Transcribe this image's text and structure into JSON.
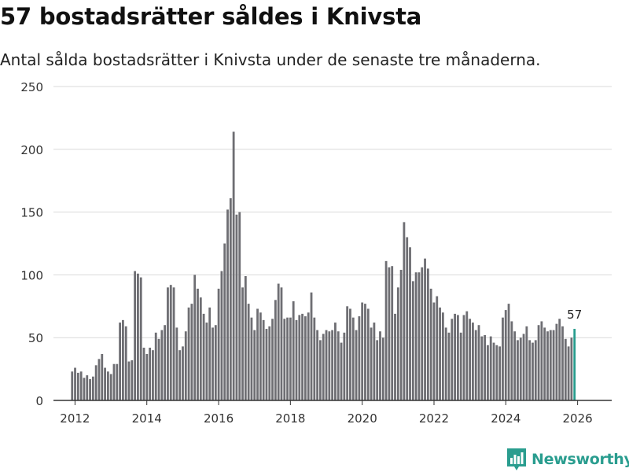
{
  "header": {
    "title": "57 bostadsrätter såldes i Knivsta",
    "subtitle": "Antal sålda bostadsrätter i Knivsta under de senaste tre månaderna."
  },
  "brand": {
    "name": "Newsworthy",
    "color": "#2a9d8f"
  },
  "colors": {
    "bar": "#6e6e73",
    "highlight": "#2a9d8f",
    "grid": "#d9d9d9",
    "axis": "#333333"
  },
  "chart_data": {
    "type": "bar",
    "title": "57 bostadsrätter såldes i Knivsta",
    "xlabel": "",
    "ylabel": "",
    "ylim": [
      0,
      250
    ],
    "xlim": [
      2011.4,
      2026.95
    ],
    "yticks": [
      0,
      50,
      100,
      150,
      200,
      250
    ],
    "xticks": [
      2012,
      2014,
      2016,
      2018,
      2020,
      2022,
      2024,
      2026
    ],
    "x_start": 2011.92,
    "x_step": 0.0833,
    "values": [
      23,
      26,
      22,
      23,
      18,
      20,
      17,
      19,
      28,
      33,
      37,
      26,
      23,
      21,
      29,
      29,
      62,
      64,
      59,
      31,
      32,
      103,
      101,
      98,
      42,
      37,
      42,
      40,
      54,
      49,
      56,
      60,
      90,
      92,
      90,
      58,
      40,
      43,
      55,
      74,
      77,
      100,
      89,
      82,
      69,
      62,
      74,
      58,
      60,
      89,
      103,
      125,
      152,
      161,
      214,
      148,
      150,
      90,
      99,
      77,
      66,
      56,
      73,
      70,
      64,
      57,
      59,
      65,
      80,
      93,
      90,
      65,
      66,
      66,
      79,
      64,
      68,
      69,
      67,
      70,
      86,
      66,
      56,
      48,
      53,
      56,
      55,
      56,
      62,
      55,
      46,
      54,
      75,
      73,
      66,
      56,
      67,
      78,
      77,
      73,
      58,
      62,
      48,
      55,
      50,
      111,
      106,
      107,
      69,
      90,
      104,
      142,
      130,
      122,
      95,
      102,
      102,
      106,
      113,
      105,
      89,
      78,
      83,
      74,
      70,
      58,
      54,
      65,
      69,
      68,
      54,
      68,
      71,
      65,
      62,
      56,
      60,
      51,
      52,
      44,
      51,
      46,
      44,
      43,
      66,
      72,
      77,
      63,
      55,
      48,
      50,
      53,
      59,
      48,
      46,
      48,
      60,
      63,
      58,
      55,
      56,
      56,
      61,
      65,
      59,
      49,
      43,
      50,
      57
    ],
    "highlight_index": 168,
    "annotation": "57",
    "legend": "none",
    "grid": true
  }
}
